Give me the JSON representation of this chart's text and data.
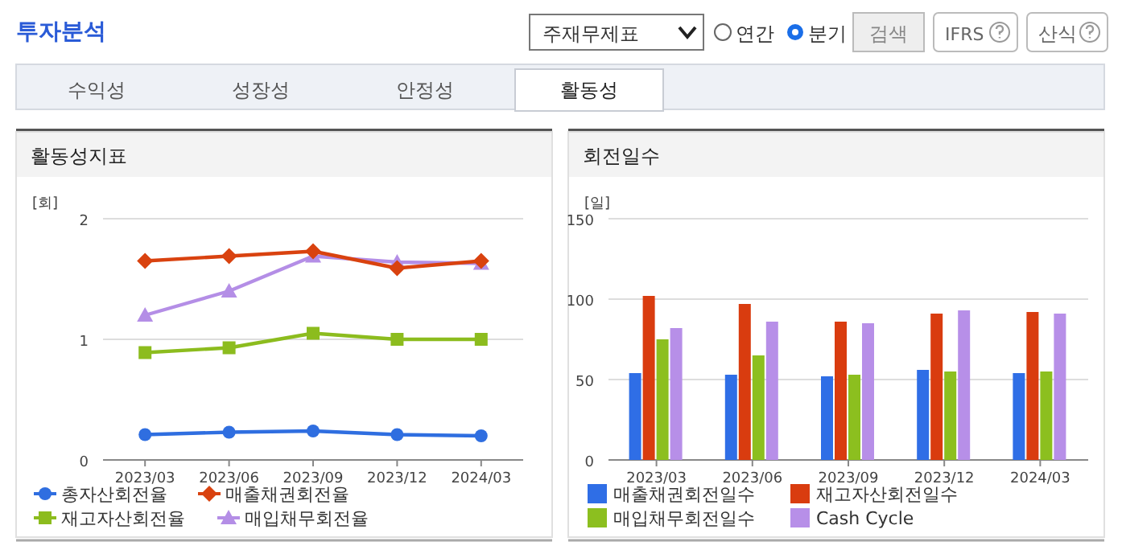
{
  "chart_data": [
    {
      "type": "line",
      "title": "활동성지표",
      "ylabel": "[회]",
      "categories": [
        "2023/03",
        "2023/06",
        "2023/09",
        "2023/12",
        "2024/03"
      ],
      "ylim": [
        0,
        2
      ],
      "yticks": [
        0,
        1,
        2
      ],
      "grid": "y",
      "legend": "bottom",
      "annotations": [
        "투자분석",
        "주재무제표",
        "연간",
        "분기",
        "검색",
        "IFRS",
        "산식",
        "수익성",
        "성장성",
        "안정성",
        "활동성"
      ],
      "series": [
        {
          "name": "총자산회전율",
          "color": "#2f6ee0",
          "marker": "circle",
          "values": [
            0.21,
            0.23,
            0.24,
            0.21,
            0.2
          ]
        },
        {
          "name": "매출채권회전율",
          "color": "#d9420f",
          "marker": "diamond",
          "values": [
            1.65,
            1.69,
            1.73,
            1.59,
            1.65
          ]
        },
        {
          "name": "재고자산회전율",
          "color": "#8cbc1e",
          "marker": "square",
          "values": [
            0.89,
            0.93,
            1.05,
            1.0,
            1.0
          ]
        },
        {
          "name": "매입채무회전율",
          "color": "#b48ee6",
          "marker": "triangle",
          "values": [
            1.2,
            1.4,
            1.69,
            1.64,
            1.63
          ]
        }
      ]
    },
    {
      "type": "bar",
      "title": "회전일수",
      "ylabel": "[일]",
      "categories": [
        "2023/03",
        "2023/06",
        "2023/09",
        "2023/12",
        "2024/03"
      ],
      "ylim": [
        0,
        150
      ],
      "yticks": [
        0,
        50,
        100,
        150
      ],
      "grid": "y",
      "legend": "bottom",
      "series": [
        {
          "name": "매출채권회전일수",
          "color": "#2f6ee6",
          "values": [
            54,
            53,
            52,
            56,
            54
          ]
        },
        {
          "name": "재고자산회전일수",
          "color": "#d93c0f",
          "values": [
            102,
            97,
            86,
            91,
            92
          ]
        },
        {
          "name": "매입채무회전일수",
          "color": "#8cbf1f",
          "values": [
            75,
            65,
            53,
            55,
            55
          ]
        },
        {
          "name": "Cash Cycle",
          "color": "#b78fe8",
          "values": [
            82,
            86,
            85,
            93,
            91
          ]
        }
      ]
    }
  ]
}
